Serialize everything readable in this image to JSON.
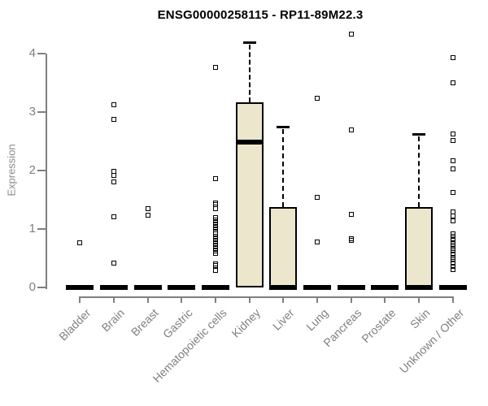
{
  "chart_data": {
    "type": "boxplot",
    "title": "ENSG00000258115 - RP11-89M22.3",
    "ylabel": "Expression",
    "xlabel": "",
    "ylim": [
      0,
      4
    ],
    "yticks": [
      0,
      1,
      2,
      3,
      4
    ],
    "grid": false,
    "legend": "none",
    "categories": [
      "Bladder",
      "Brain",
      "Breast",
      "Gastric",
      "Hematopoietic cells",
      "Kidney",
      "Liver",
      "Lung",
      "Pancreas",
      "Prostate",
      "Skin",
      "Unknown / Other"
    ],
    "series": [
      {
        "label": "Bladder",
        "q1": 0,
        "median": 0,
        "q3": 0,
        "whisker_low": 0,
        "whisker_high": 0,
        "outliers": [
          0.77
        ]
      },
      {
        "label": "Brain",
        "q1": 0,
        "median": 0,
        "q3": 0,
        "whisker_low": 0,
        "whisker_high": 0,
        "outliers": [
          3.13,
          2.87,
          1.99,
          1.92,
          1.81,
          1.21,
          0.42
        ]
      },
      {
        "label": "Breast",
        "q1": 0,
        "median": 0,
        "q3": 0,
        "whisker_low": 0,
        "whisker_high": 0,
        "outliers": [
          1.35,
          1.24
        ]
      },
      {
        "label": "Gastric",
        "q1": 0,
        "median": 0,
        "q3": 0,
        "whisker_low": 0,
        "whisker_high": 0,
        "outliers": []
      },
      {
        "label": "Hematopoietic cells",
        "q1": 0,
        "median": 0,
        "q3": 0,
        "whisker_low": 0,
        "whisker_high": 0,
        "outliers": [
          3.76,
          1.86,
          1.45,
          1.41,
          1.35,
          1.19,
          1.15,
          1.11,
          1.07,
          1.03,
          0.99,
          0.95,
          0.91,
          0.87,
          0.83,
          0.79,
          0.75,
          0.71,
          0.67,
          0.63,
          0.59,
          0.4,
          0.38,
          0.29
        ]
      },
      {
        "label": "Kidney",
        "q1": 0,
        "median": 2.48,
        "q3": 3.16,
        "whisker_low": 0,
        "whisker_high": 4.2,
        "outliers": []
      },
      {
        "label": "Liver",
        "q1": 0,
        "median": 0,
        "q3": 1.37,
        "whisker_low": 0,
        "whisker_high": 2.75,
        "outliers": []
      },
      {
        "label": "Lung",
        "q1": 0,
        "median": 0,
        "q3": 0,
        "whisker_low": 0,
        "whisker_high": 0,
        "outliers": [
          3.24,
          1.54,
          0.78
        ]
      },
      {
        "label": "Pancreas",
        "q1": 0,
        "median": 0,
        "q3": 0,
        "whisker_low": 0,
        "whisker_high": 0,
        "outliers": [
          4.33,
          2.69,
          1.25,
          0.84,
          0.8
        ]
      },
      {
        "label": "Prostate",
        "q1": 0,
        "median": 0,
        "q3": 0,
        "whisker_low": 0,
        "whisker_high": 0,
        "outliers": []
      },
      {
        "label": "Skin",
        "q1": 0,
        "median": 0,
        "q3": 1.37,
        "whisker_low": 0,
        "whisker_high": 2.63,
        "outliers": []
      },
      {
        "label": "Unknown / Other",
        "q1": 0,
        "median": 0,
        "q3": 0,
        "whisker_low": 0,
        "whisker_high": 0,
        "outliers": [
          3.93,
          3.5,
          2.63,
          2.51,
          2.16,
          2.03,
          1.63,
          1.29,
          1.22,
          1.14,
          0.92,
          0.87,
          0.82,
          0.77,
          0.72,
          0.67,
          0.62,
          0.57,
          0.52,
          0.47,
          0.42,
          0.36,
          0.31
        ]
      }
    ],
    "colors": {
      "box_fill": "#ECE7CC",
      "box_border": "#000000",
      "median": "#000000",
      "whisker": "#000000",
      "outlier": "#000000",
      "axis": "#808080",
      "axis_text": "#808080",
      "title_text": "#000000",
      "background": "#FFFFFF"
    }
  }
}
